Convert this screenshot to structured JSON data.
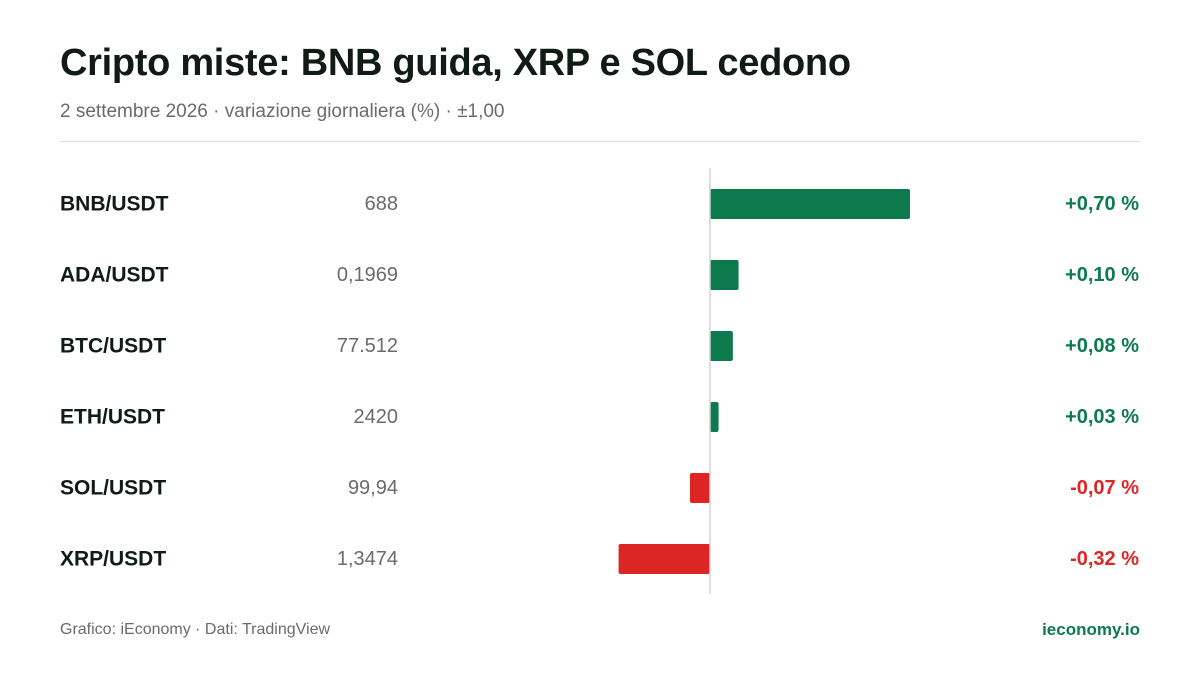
{
  "header": {
    "title": "Cripto miste: BNB guida, XRP e SOL cedono",
    "subtitle": "2 settembre 2026 · variazione giornaliera (%) · ±1,00"
  },
  "footer": {
    "source": "Grafico: iEconomy · Dati: TradingView",
    "site": "ieconomy.io"
  },
  "colors": {
    "positive": "#0d7a4e",
    "negative": "#dc2626",
    "axis": "#d4d4d4"
  },
  "chart_data": {
    "type": "bar",
    "orientation": "horizontal",
    "xlim": [
      -1.0,
      1.0
    ],
    "rows": [
      {
        "pair": "BNB/USDT",
        "price": "688",
        "change": 0.7,
        "change_label": "+0,70 %"
      },
      {
        "pair": "ADA/USDT",
        "price": "0,1969",
        "change": 0.1,
        "change_label": "+0,10 %"
      },
      {
        "pair": "BTC/USDT",
        "price": "77.512",
        "change": 0.08,
        "change_label": "+0,08 %"
      },
      {
        "pair": "ETH/USDT",
        "price": "2420",
        "change": 0.03,
        "change_label": "+0,03 %"
      },
      {
        "pair": "SOL/USDT",
        "price": "99,94",
        "change": -0.07,
        "change_label": "-0,07 %"
      },
      {
        "pair": "XRP/USDT",
        "price": "1,3474",
        "change": -0.32,
        "change_label": "-0,32 %"
      }
    ]
  }
}
